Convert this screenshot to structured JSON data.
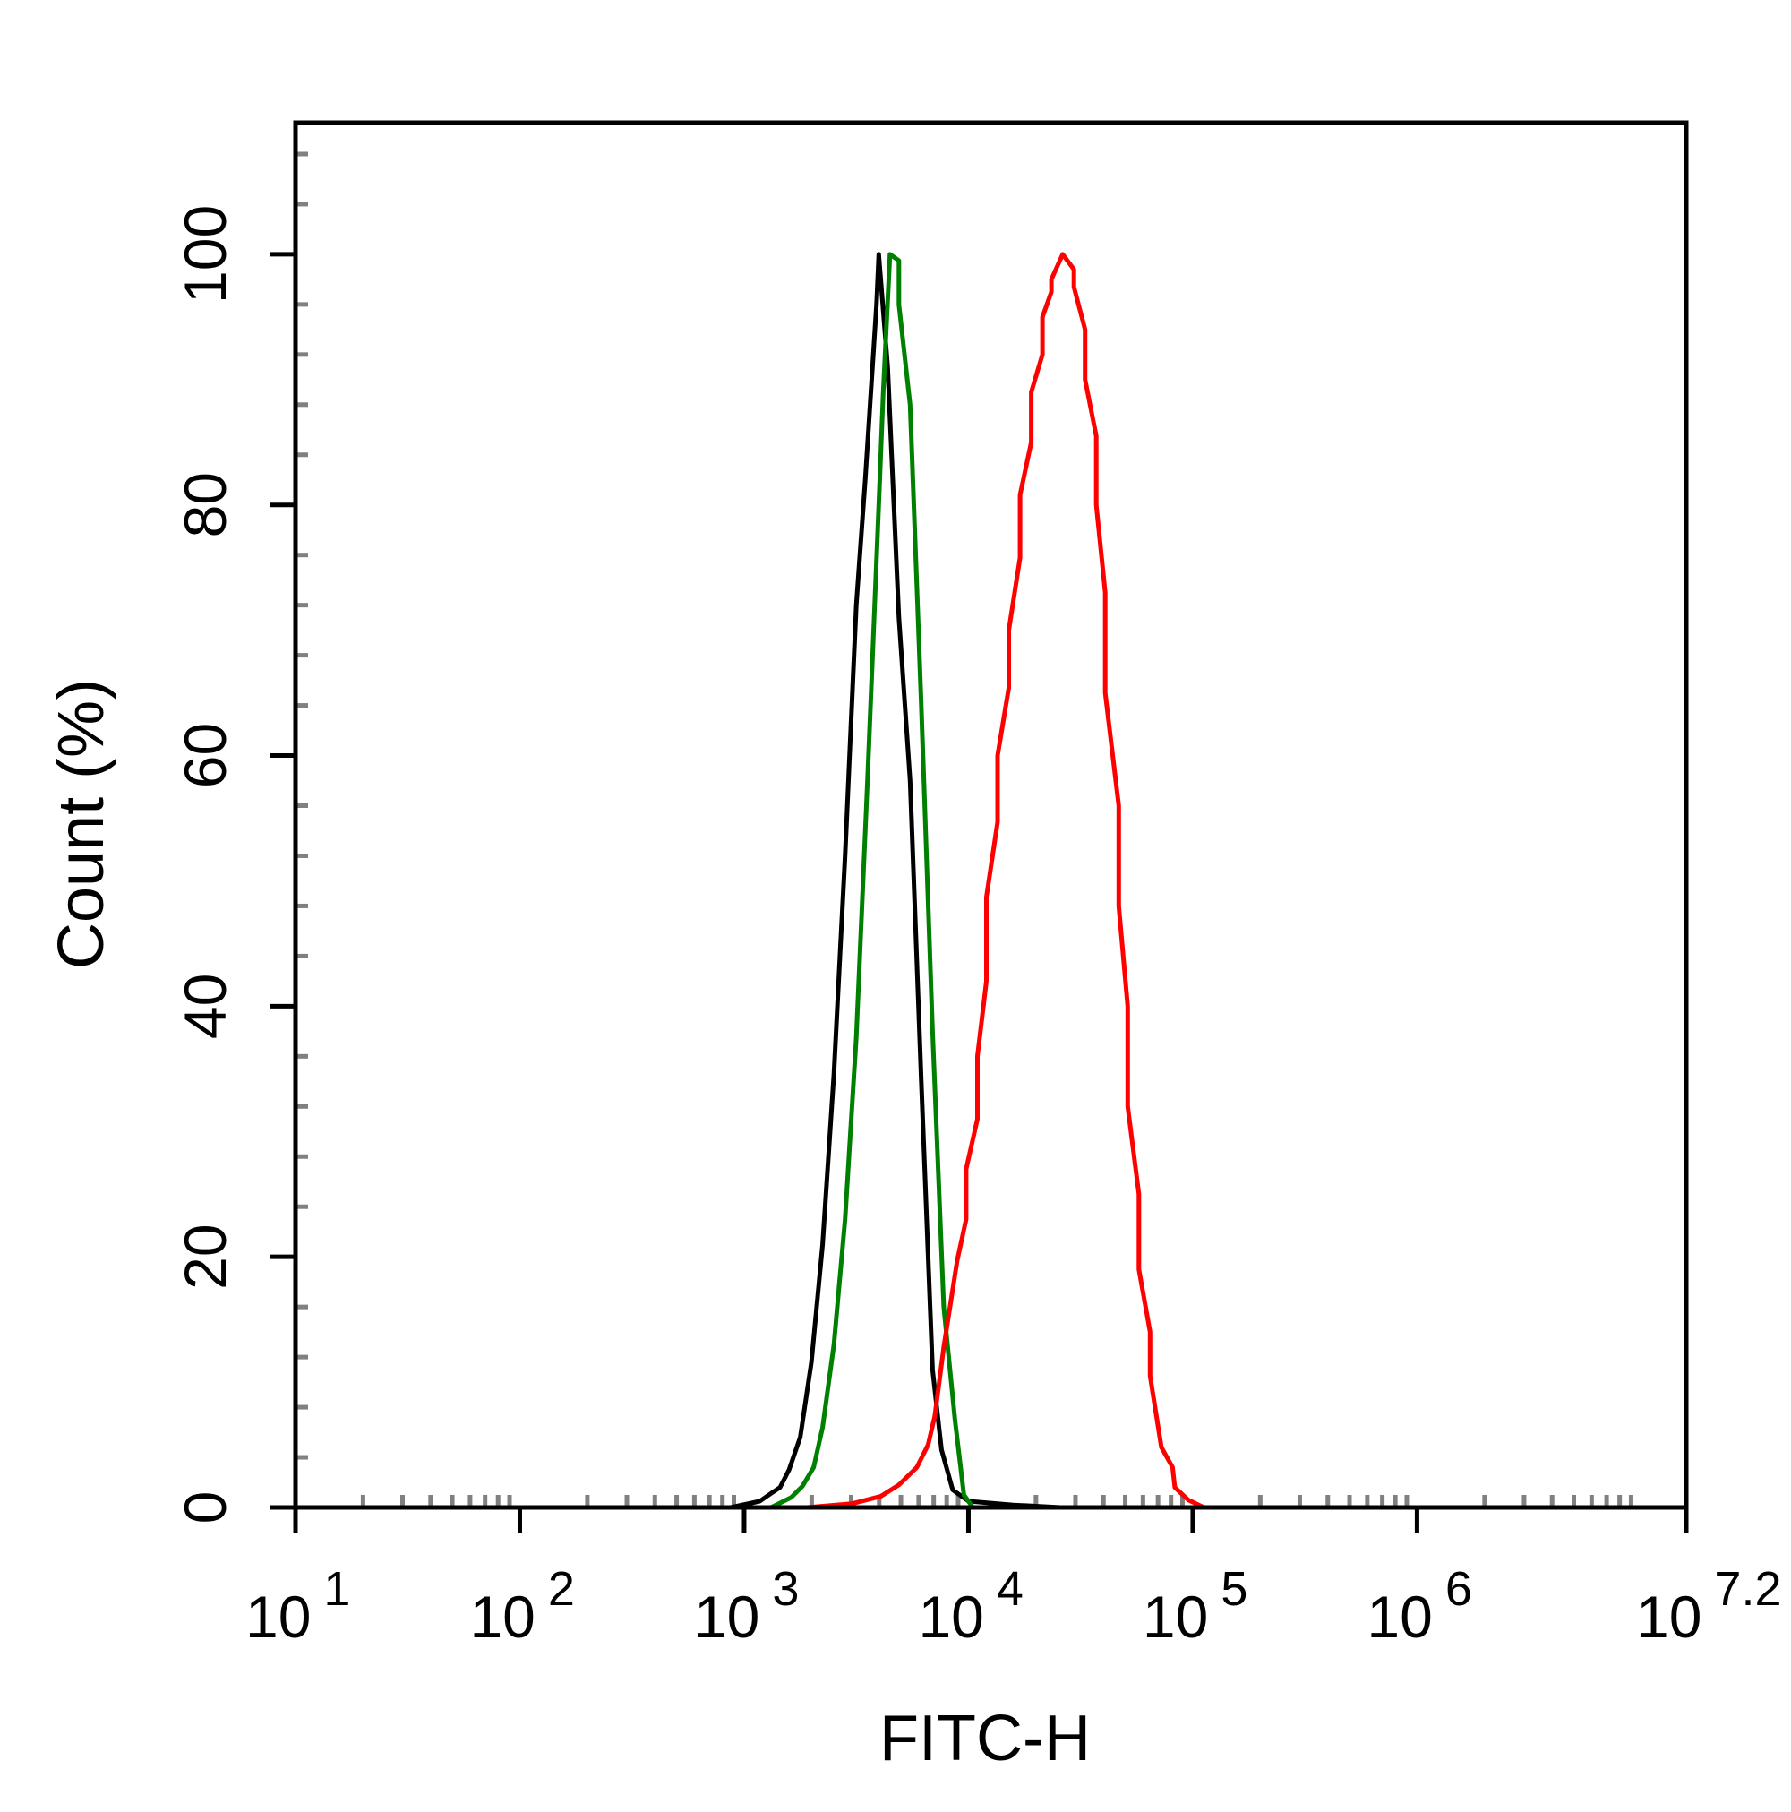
{
  "chart_data": {
    "type": "line",
    "subtype": "flow-cytometry-histogram",
    "title": "",
    "xlabel": "FITC-H",
    "ylabel": "Count (%)",
    "x_scale": "log10",
    "xlim_log10": [
      1,
      7.2
    ],
    "ylim": [
      0,
      110.5
    ],
    "x_tick_labels": [
      {
        "base": "10",
        "exp": "1",
        "log10": 1
      },
      {
        "base": "10",
        "exp": "2",
        "log10": 2
      },
      {
        "base": "10",
        "exp": "3",
        "log10": 3
      },
      {
        "base": "10",
        "exp": "4",
        "log10": 4
      },
      {
        "base": "10",
        "exp": "5",
        "log10": 5
      },
      {
        "base": "10",
        "exp": "6",
        "log10": 6
      },
      {
        "base": "10",
        "exp": "7.2",
        "log10": 7.2
      }
    ],
    "y_ticks": [
      0,
      20,
      40,
      60,
      80,
      100
    ],
    "y_tick_labels": [
      "0",
      "20",
      "40",
      "60",
      "80",
      "100"
    ],
    "grid": false,
    "legend": "none",
    "series": [
      {
        "color": "#000000",
        "points_log10x_y": [
          [
            2.94,
            0
          ],
          [
            3.07,
            0.5
          ],
          [
            3.11,
            1
          ],
          [
            3.16,
            1.6
          ],
          [
            3.2,
            3
          ],
          [
            3.25,
            5.6
          ],
          [
            3.3,
            11.6
          ],
          [
            3.35,
            21
          ],
          [
            3.4,
            34.6
          ],
          [
            3.45,
            52
          ],
          [
            3.5,
            72
          ],
          [
            3.54,
            82
          ],
          [
            3.59,
            96
          ],
          [
            3.6,
            100
          ],
          [
            3.64,
            91
          ],
          [
            3.69,
            71
          ],
          [
            3.74,
            58
          ],
          [
            3.79,
            34
          ],
          [
            3.84,
            11
          ],
          [
            3.88,
            4.6
          ],
          [
            3.93,
            1.4
          ],
          [
            4.0,
            0.5
          ],
          [
            4.2,
            0.2
          ],
          [
            4.41,
            0
          ]
        ]
      },
      {
        "color": "#008000",
        "points_log10x_y": [
          [
            3.12,
            0
          ],
          [
            3.21,
            0.8
          ],
          [
            3.26,
            1.7
          ],
          [
            3.31,
            3.2
          ],
          [
            3.35,
            6.4
          ],
          [
            3.4,
            13
          ],
          [
            3.45,
            23
          ],
          [
            3.5,
            37.5
          ],
          [
            3.55,
            58
          ],
          [
            3.6,
            80
          ],
          [
            3.62,
            89
          ],
          [
            3.65,
            100
          ],
          [
            3.69,
            99.5
          ],
          [
            3.69,
            96
          ],
          [
            3.74,
            88
          ],
          [
            3.79,
            64
          ],
          [
            3.84,
            38
          ],
          [
            3.89,
            16
          ],
          [
            3.94,
            7
          ],
          [
            3.98,
            1
          ],
          [
            4.02,
            0
          ]
        ]
      },
      {
        "color": "#ff0000",
        "points_log10x_y": [
          [
            3.28,
            0
          ],
          [
            3.48,
            0.3
          ],
          [
            3.61,
            0.9
          ],
          [
            3.69,
            1.8
          ],
          [
            3.77,
            3.2
          ],
          [
            3.82,
            5
          ],
          [
            3.85,
            7.3
          ],
          [
            3.89,
            12.8
          ],
          [
            3.95,
            19.7
          ],
          [
            3.99,
            23
          ],
          [
            3.99,
            27
          ],
          [
            4.04,
            31
          ],
          [
            4.04,
            36
          ],
          [
            4.08,
            42
          ],
          [
            4.08,
            48.7
          ],
          [
            4.13,
            54.7
          ],
          [
            4.13,
            60
          ],
          [
            4.18,
            65.4
          ],
          [
            4.18,
            70
          ],
          [
            4.23,
            75.8
          ],
          [
            4.23,
            80.8
          ],
          [
            4.28,
            85
          ],
          [
            4.28,
            89
          ],
          [
            4.33,
            92
          ],
          [
            4.33,
            95
          ],
          [
            4.37,
            97
          ],
          [
            4.37,
            98
          ],
          [
            4.42,
            100
          ],
          [
            4.47,
            98.8
          ],
          [
            4.47,
            97.4
          ],
          [
            4.52,
            94
          ],
          [
            4.52,
            90
          ],
          [
            4.57,
            85.5
          ],
          [
            4.57,
            80
          ],
          [
            4.61,
            73
          ],
          [
            4.61,
            65
          ],
          [
            4.67,
            56
          ],
          [
            4.67,
            48
          ],
          [
            4.71,
            40
          ],
          [
            4.71,
            32
          ],
          [
            4.76,
            25
          ],
          [
            4.76,
            19
          ],
          [
            4.81,
            14
          ],
          [
            4.81,
            10.5
          ],
          [
            4.86,
            4.8
          ],
          [
            4.91,
            3.2
          ],
          [
            4.92,
            1.6
          ],
          [
            4.98,
            0.6
          ],
          [
            5.05,
            0
          ]
        ]
      }
    ]
  }
}
